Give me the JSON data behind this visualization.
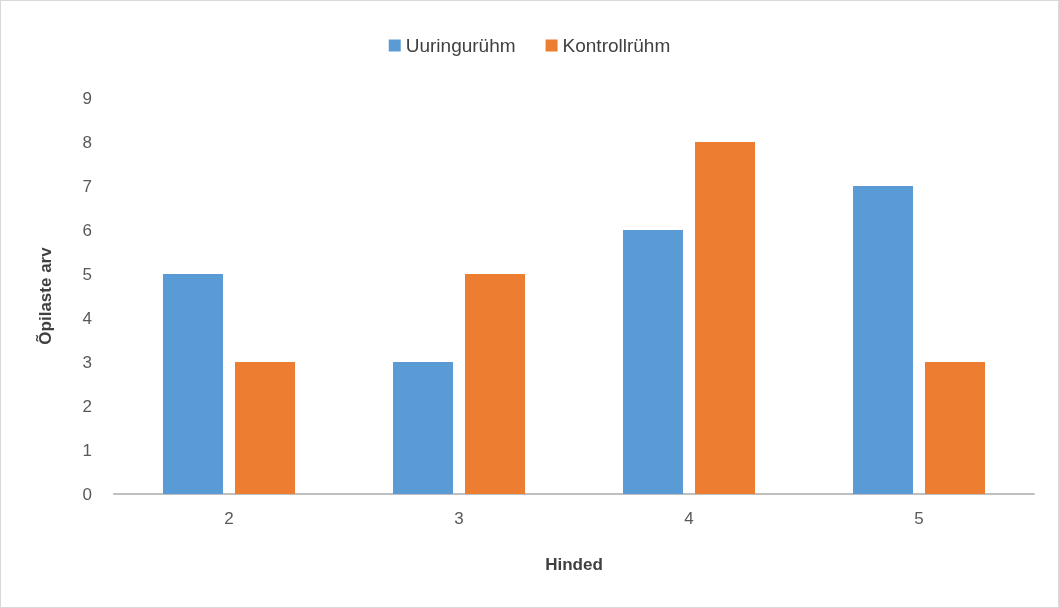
{
  "chart_data": {
    "type": "bar",
    "xlabel": "Hinded",
    "ylabel": "Õpilaste arv",
    "categories": [
      "2",
      "3",
      "4",
      "5"
    ],
    "series": [
      {
        "name": "Uuringurühm",
        "color": "#5b9bd5",
        "values": [
          5,
          3,
          6,
          7
        ]
      },
      {
        "name": "Kontrollrühm",
        "color": "#ed7d31",
        "values": [
          3,
          5,
          8,
          3
        ]
      }
    ],
    "ylim": [
      0,
      9
    ],
    "yticks": [
      0,
      1,
      2,
      3,
      4,
      5,
      6,
      7,
      8,
      9
    ],
    "grid": false,
    "legend": "top"
  }
}
